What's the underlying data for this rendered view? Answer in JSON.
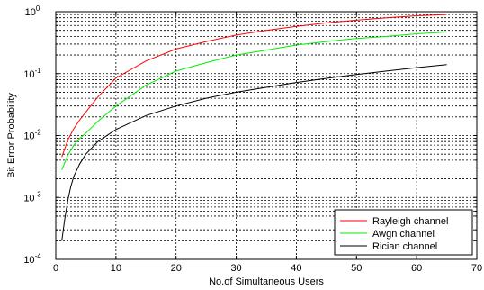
{
  "chart_data": {
    "type": "line",
    "title": "",
    "xlabel": "No.of Simultaneous Users",
    "ylabel": "Bit Error Probability",
    "xlim": [
      0,
      70
    ],
    "ylim": [
      0.0001,
      1
    ],
    "yscale": "log",
    "grid": true,
    "legend_position": "bottom-right",
    "x_ticks": [
      0,
      10,
      20,
      30,
      40,
      50,
      60,
      70
    ],
    "x_tick_labels": [
      "0",
      "10",
      "20",
      "30",
      "40",
      "50",
      "60",
      "70"
    ],
    "y_ticks": [
      0.0001,
      0.001,
      0.01,
      0.1,
      1
    ],
    "y_tick_labels": [
      {
        "base": "10",
        "exp": "-4"
      },
      {
        "base": "10",
        "exp": "-3"
      },
      {
        "base": "10",
        "exp": "-2"
      },
      {
        "base": "10",
        "exp": "-1"
      },
      {
        "base": "10",
        "exp": "0"
      }
    ],
    "series": [
      {
        "name": "Rayleigh channel",
        "color": "#ff0000",
        "x": [
          1,
          2,
          3,
          4,
          5,
          7,
          10,
          15,
          20,
          25,
          30,
          35,
          40,
          45,
          50,
          55,
          60,
          65
        ],
        "y": [
          0.0045,
          0.0085,
          0.013,
          0.018,
          0.024,
          0.042,
          0.085,
          0.16,
          0.25,
          0.33,
          0.42,
          0.5,
          0.58,
          0.66,
          0.73,
          0.8,
          0.86,
          0.9
        ]
      },
      {
        "name": "Awgn channel",
        "color": "#00ee00",
        "x": [
          1,
          2,
          3,
          4,
          5,
          7,
          10,
          15,
          20,
          25,
          30,
          35,
          40,
          45,
          50,
          55,
          60,
          65
        ],
        "y": [
          0.0028,
          0.0048,
          0.007,
          0.009,
          0.011,
          0.017,
          0.03,
          0.065,
          0.11,
          0.15,
          0.2,
          0.24,
          0.29,
          0.33,
          0.37,
          0.4,
          0.44,
          0.47
        ]
      },
      {
        "name": "Rician channel",
        "color": "#000000",
        "x": [
          1,
          1.5,
          2,
          2.5,
          3,
          4,
          5,
          7,
          10,
          15,
          20,
          25,
          30,
          35,
          40,
          45,
          50,
          55,
          60,
          65
        ],
        "y": [
          0.0002,
          0.00045,
          0.0009,
          0.0015,
          0.0022,
          0.0035,
          0.005,
          0.008,
          0.0125,
          0.021,
          0.03,
          0.04,
          0.05,
          0.06,
          0.072,
          0.084,
          0.097,
          0.11,
          0.125,
          0.14
        ]
      }
    ]
  }
}
